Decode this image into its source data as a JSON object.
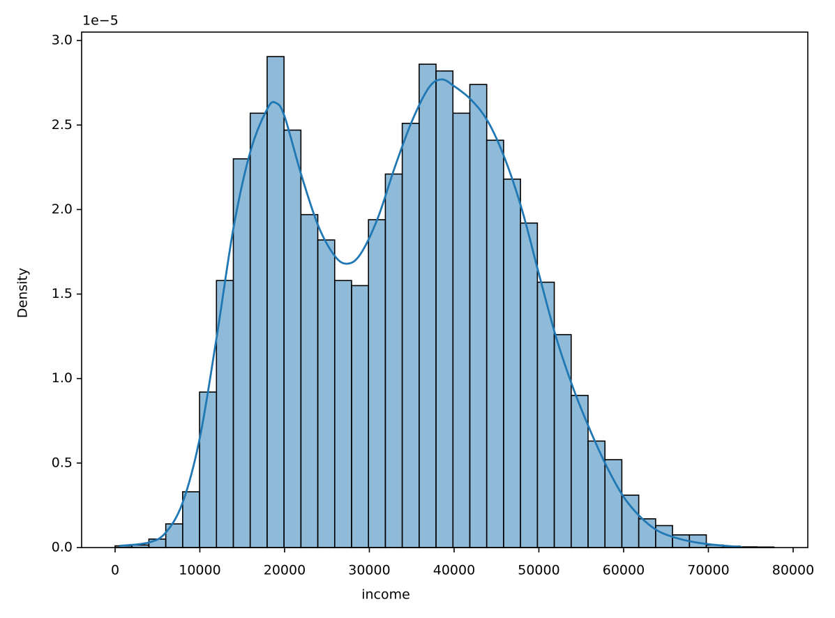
{
  "chart_data": {
    "type": "histogram",
    "xlabel": "income",
    "ylabel": "Density",
    "y_offset_label": "1e−5",
    "bins": [
      0,
      1993,
      3986,
      5979,
      7972,
      9965,
      11958,
      13951,
      15944,
      17937,
      19930,
      21923,
      23916,
      25909,
      27902,
      29895,
      31888,
      33881,
      35874,
      37867,
      39860,
      41853,
      43846,
      45839,
      47832,
      49825,
      51818,
      53811,
      55804,
      57797,
      59790,
      61783,
      63776,
      65769,
      67762,
      69755,
      71748,
      73741,
      75734,
      77727
    ],
    "values": [
      0.01,
      0.015,
      0.05,
      0.14,
      0.33,
      0.92,
      1.58,
      2.3,
      2.57,
      2.905,
      2.47,
      1.97,
      1.82,
      1.58,
      1.55,
      1.94,
      2.21,
      2.51,
      2.86,
      2.82,
      2.57,
      2.74,
      2.41,
      2.18,
      1.92,
      1.57,
      1.26,
      0.9,
      0.63,
      0.52,
      0.31,
      0.17,
      0.13,
      0.075,
      0.075,
      0.015,
      0.008,
      0.004,
      0.003
    ],
    "color": "#1f77b4",
    "alpha": 0.5,
    "edgecolor": "#000000",
    "line": {
      "color": "#1f77b4",
      "x": [
        500,
        4000,
        6000,
        8000,
        10000,
        12000,
        14000,
        16000,
        18000,
        19000,
        20000,
        22000,
        24000,
        26000,
        27500,
        29000,
        31000,
        33000,
        35000,
        37000,
        38500,
        40000,
        42000,
        44000,
        46000,
        48000,
        50000,
        52000,
        54000,
        56000,
        58000,
        60000,
        62000,
        64000,
        66000,
        68000,
        70000,
        72000,
        74000
      ],
      "values": [
        0.01,
        0.03,
        0.09,
        0.27,
        0.65,
        1.25,
        1.9,
        2.35,
        2.6,
        2.63,
        2.55,
        2.2,
        1.9,
        1.72,
        1.68,
        1.74,
        1.95,
        2.25,
        2.52,
        2.72,
        2.77,
        2.73,
        2.65,
        2.52,
        2.3,
        2.0,
        1.62,
        1.25,
        0.95,
        0.7,
        0.48,
        0.3,
        0.18,
        0.1,
        0.06,
        0.035,
        0.02,
        0.01,
        0.003
      ]
    },
    "xlim": [
      -3950,
      81730
    ],
    "ylim": [
      0,
      3.05
    ],
    "xticks": [
      0,
      10000,
      20000,
      30000,
      40000,
      50000,
      60000,
      70000,
      80000
    ],
    "yticks": [
      {
        "value": 0,
        "label": "0.0"
      },
      0.5,
      {
        "value": 1,
        "label": "1.0"
      },
      1.5,
      {
        "value": 2,
        "label": "2.0"
      },
      2.5,
      {
        "value": 3,
        "label": "3.0"
      }
    ]
  }
}
